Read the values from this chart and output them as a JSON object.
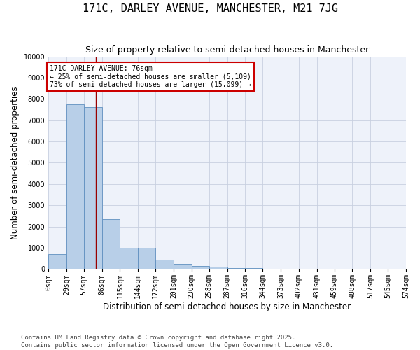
{
  "title": "171C, DARLEY AVENUE, MANCHESTER, M21 7JG",
  "subtitle": "Size of property relative to semi-detached houses in Manchester",
  "xlabel": "Distribution of semi-detached houses by size in Manchester",
  "ylabel": "Number of semi-detached properties",
  "property_size": 76,
  "property_label": "171C DARLEY AVENUE: 76sqm",
  "pct_smaller": 25,
  "pct_larger": 73,
  "n_smaller": 5109,
  "n_larger": 15099,
  "annotation_box_color": "#cc0000",
  "bar_color": "#b8cfe8",
  "bar_edge_color": "#6090c0",
  "vline_color": "#990000",
  "bg_color": "#eef2fa",
  "grid_color": "#c8d0e0",
  "bins": [
    0,
    29,
    57,
    86,
    115,
    144,
    172,
    201,
    230,
    258,
    287,
    316,
    344,
    373,
    402,
    431,
    459,
    488,
    517,
    545,
    574
  ],
  "counts": [
    700,
    7750,
    7600,
    2350,
    1000,
    1000,
    430,
    230,
    155,
    100,
    50,
    35,
    15,
    5,
    2,
    1,
    0,
    0,
    0,
    0
  ],
  "footer": "Contains HM Land Registry data © Crown copyright and database right 2025.\nContains public sector information licensed under the Open Government Licence v3.0.",
  "ylim": [
    0,
    10000
  ],
  "yticks": [
    0,
    1000,
    2000,
    3000,
    4000,
    5000,
    6000,
    7000,
    8000,
    9000,
    10000
  ],
  "title_fontsize": 11,
  "subtitle_fontsize": 9,
  "axis_label_fontsize": 8.5,
  "tick_fontsize": 7,
  "footer_fontsize": 6.5
}
